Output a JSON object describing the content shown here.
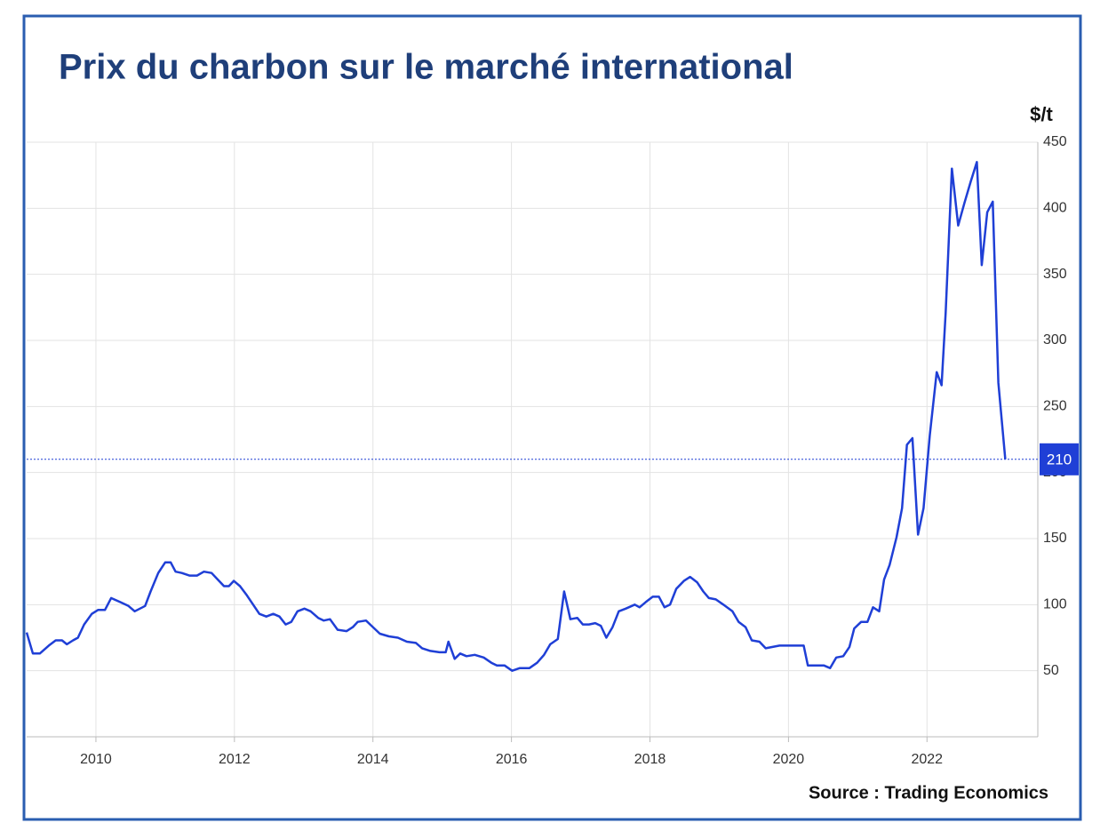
{
  "chart_data": {
    "type": "line",
    "title": "Prix du charbon sur le marché international",
    "y_label": "$/t",
    "source": "Source : Trading Economics",
    "color": "#1f3fd6",
    "grid": true,
    "xlim": [
      2009,
      2023.6
    ],
    "xticks": [
      2010,
      2012,
      2014,
      2016,
      2018,
      2020,
      2022
    ],
    "ylim": [
      0,
      450
    ],
    "yticks": [
      50,
      100,
      150,
      200,
      250,
      300,
      350,
      400,
      450
    ],
    "price_marker": {
      "value": 210,
      "label": "210"
    },
    "x": [
      2009.0,
      2009.09,
      2009.19,
      2009.32,
      2009.42,
      2009.51,
      2009.58,
      2009.67,
      2009.74,
      2009.83,
      2009.94,
      2010.03,
      2010.13,
      2010.22,
      2010.35,
      2010.47,
      2010.56,
      2010.71,
      2010.79,
      2010.9,
      2011.0,
      2011.08,
      2011.15,
      2011.24,
      2011.35,
      2011.46,
      2011.56,
      2011.67,
      2011.76,
      2011.85,
      2011.92,
      2011.99,
      2012.08,
      2012.18,
      2012.27,
      2012.36,
      2012.46,
      2012.56,
      2012.65,
      2012.74,
      2012.82,
      2012.91,
      2013.01,
      2013.1,
      2013.21,
      2013.29,
      2013.38,
      2013.49,
      2013.62,
      2013.71,
      2013.78,
      2013.9,
      2014.0,
      2014.1,
      2014.23,
      2014.36,
      2014.49,
      2014.62,
      2014.71,
      2014.83,
      2014.96,
      2015.05,
      2015.09,
      2015.18,
      2015.26,
      2015.35,
      2015.47,
      2015.6,
      2015.71,
      2015.79,
      2015.9,
      2016.01,
      2016.12,
      2016.26,
      2016.37,
      2016.47,
      2016.56,
      2016.67,
      2016.76,
      2016.85,
      2016.95,
      2017.03,
      2017.12,
      2017.21,
      2017.29,
      2017.37,
      2017.46,
      2017.55,
      2017.65,
      2017.78,
      2017.85,
      2017.94,
      2018.04,
      2018.13,
      2018.21,
      2018.29,
      2018.38,
      2018.49,
      2018.58,
      2018.68,
      2018.77,
      2018.85,
      2018.95,
      2019.06,
      2019.19,
      2019.28,
      2019.38,
      2019.47,
      2019.58,
      2019.67,
      2019.77,
      2019.87,
      2020.0,
      2020.13,
      2020.22,
      2020.28,
      2020.38,
      2020.51,
      2020.6,
      2020.69,
      2020.79,
      2020.88,
      2020.95,
      2021.05,
      2021.14,
      2021.22,
      2021.31,
      2021.38,
      2021.46,
      2021.56,
      2021.64,
      2021.71,
      2021.79,
      2021.87,
      2021.95,
      2022.04,
      2022.14,
      2022.21,
      2022.27,
      2022.36,
      2022.45,
      2022.54,
      2022.63,
      2022.72,
      2022.79,
      2022.87,
      2022.95,
      2023.03,
      2023.13
    ],
    "values": [
      79,
      63,
      63,
      69,
      73,
      73,
      70,
      73,
      75,
      85,
      93,
      96,
      96,
      105,
      102,
      99,
      95,
      99,
      110,
      124,
      132,
      132,
      125,
      124,
      122,
      122,
      125,
      124,
      119,
      114,
      114,
      118,
      114,
      107,
      100,
      93,
      91,
      93,
      91,
      85,
      87,
      95,
      97,
      95,
      90,
      88,
      89,
      81,
      80,
      83,
      87,
      88,
      83,
      78,
      76,
      75,
      72,
      71,
      67,
      65,
      64,
      64,
      72,
      59,
      63,
      61,
      62,
      60,
      56,
      54,
      54,
      50,
      52,
      52,
      56,
      62,
      70,
      74,
      110,
      89,
      90,
      85,
      85,
      86,
      84,
      75,
      83,
      95,
      97,
      100,
      98,
      102,
      106,
      106,
      98,
      100,
      112,
      118,
      121,
      117,
      110,
      105,
      104,
      100,
      95,
      87,
      83,
      73,
      72,
      67,
      68,
      69,
      69,
      69,
      69,
      54,
      54,
      54,
      52,
      60,
      61,
      68,
      82,
      87,
      87,
      98,
      95,
      119,
      130,
      151,
      173,
      221,
      226,
      153,
      173,
      228,
      276,
      266,
      321,
      430,
      387,
      404,
      420,
      435,
      357,
      397,
      405,
      268,
      210
    ]
  }
}
